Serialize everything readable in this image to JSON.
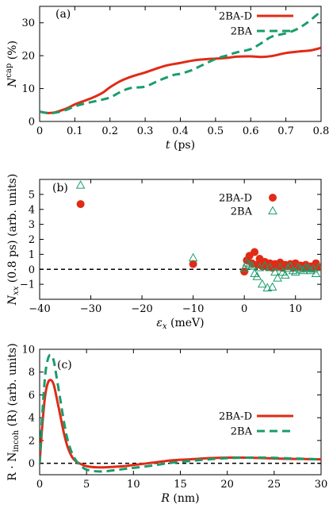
{
  "colors": {
    "red": "#e02b16",
    "green": "#1a9c6b",
    "black": "#000000"
  },
  "chart_data": [
    {
      "type": "line",
      "panel_label": "(a)",
      "xlabel_main": "t",
      "xlabel_unit": "(ps)",
      "ylabel_main": "N",
      "ylabel_sup": "cap",
      "ylabel_unit": "(%)",
      "xlim": [
        0,
        0.8
      ],
      "ylim": [
        0,
        35
      ],
      "xticks": [
        0,
        0.1,
        0.2,
        0.3,
        0.4,
        0.5,
        0.6,
        0.7,
        0.8
      ],
      "xtick_labels": [
        "0",
        "0.1",
        "0.2",
        "0.3",
        "0.4",
        "0.5",
        "0.6",
        "0.7",
        "0.8"
      ],
      "yticks": [
        0,
        10,
        20,
        30
      ],
      "ytick_labels": [
        "0",
        "10",
        "20",
        "30"
      ],
      "legend": "top-right",
      "series": [
        {
          "name": "2BA-D",
          "style": "solid",
          "color": "#e02b16",
          "x": [
            0,
            0.02,
            0.04,
            0.06,
            0.08,
            0.1,
            0.12,
            0.15,
            0.18,
            0.2,
            0.23,
            0.26,
            0.3,
            0.33,
            0.36,
            0.4,
            0.44,
            0.48,
            0.5,
            0.53,
            0.56,
            0.6,
            0.63,
            0.66,
            0.7,
            0.74,
            0.77,
            0.8
          ],
          "y": [
            3,
            2.6,
            2.7,
            3.3,
            4.1,
            5.2,
            6.0,
            7.2,
            8.8,
            10.4,
            12.3,
            13.6,
            14.9,
            16.0,
            17.0,
            17.8,
            18.6,
            19.0,
            19.1,
            19.3,
            19.7,
            19.8,
            19.6,
            19.9,
            20.8,
            21.3,
            21.6,
            22.4
          ]
        },
        {
          "name": "2BA",
          "style": "dashed",
          "color": "#1a9c6b",
          "x": [
            0,
            0.02,
            0.04,
            0.06,
            0.08,
            0.1,
            0.13,
            0.16,
            0.2,
            0.23,
            0.26,
            0.3,
            0.34,
            0.38,
            0.4,
            0.43,
            0.46,
            0.5,
            0.53,
            0.56,
            0.6,
            0.63,
            0.66,
            0.7,
            0.73,
            0.76,
            0.8
          ],
          "y": [
            3,
            2.6,
            2.6,
            3.0,
            3.7,
            4.6,
            5.5,
            6.2,
            7.3,
            9.0,
            10.2,
            10.6,
            12.5,
            14.1,
            14.5,
            15.5,
            17.0,
            19.0,
            20.0,
            21.0,
            22.0,
            23.8,
            25.8,
            26.8,
            28.0,
            30.0,
            33.5
          ]
        }
      ]
    },
    {
      "type": "scatter",
      "panel_label": "(b)",
      "xlabel_main": "ε",
      "xlabel_sub": "x",
      "xlabel_unit": "(meV)",
      "ylabel_main": "N",
      "ylabel_sub": "xx",
      "ylabel_unit": "(0.8 ps) (arb. units)",
      "xlim": [
        -40,
        15
      ],
      "ylim": [
        -2,
        6
      ],
      "xticks": [
        -40,
        -30,
        -20,
        -10,
        0,
        10
      ],
      "xtick_labels": [
        "−40",
        "−30",
        "−20",
        "−10",
        "0",
        "10"
      ],
      "yticks": [
        -1,
        0,
        1,
        2,
        3,
        4,
        5
      ],
      "ytick_labels": [
        "−1",
        "0",
        "1",
        "2",
        "3",
        "4",
        "5"
      ],
      "zero_line": true,
      "legend": "top-right",
      "series": [
        {
          "name": "2BA-D",
          "marker": "filled-circle",
          "color": "#e02b16",
          "x": [
            -32,
            -10,
            0,
            0.5,
            1,
            1.5,
            2,
            2.5,
            3,
            3.5,
            4,
            4.5,
            5,
            5.5,
            6,
            6.5,
            7,
            7.5,
            8,
            8.5,
            9,
            9.5,
            10,
            10.5,
            11,
            11.5,
            12,
            12.5,
            13,
            13.5,
            14,
            14.5
          ],
          "y": [
            4.35,
            0.35,
            -0.15,
            0.6,
            0.9,
            0.4,
            1.15,
            0.3,
            0.7,
            0.2,
            0.5,
            0.15,
            0.4,
            0.1,
            0.35,
            0.2,
            0.45,
            0.1,
            0.3,
            0.2,
            0.35,
            0.1,
            0.4,
            0.15,
            0.25,
            0.1,
            0.3,
            0.1,
            0.2,
            0.1,
            0.4,
            0.15
          ]
        },
        {
          "name": "2BA",
          "marker": "open-triangle",
          "color": "#1a9c6b",
          "x": [
            -32,
            -10,
            0,
            0.5,
            1,
            1.5,
            2,
            2.5,
            3,
            3.5,
            4,
            4.5,
            5,
            5.5,
            6,
            6.5,
            7,
            7.5,
            8,
            8.5,
            9,
            9.5,
            10,
            10.5,
            11,
            11.5,
            12,
            12.5,
            13,
            13.5,
            14,
            14.5
          ],
          "y": [
            5.6,
            0.75,
            0.05,
            0.4,
            0.3,
            0.2,
            -0.3,
            -0.5,
            0.1,
            -1.0,
            0.2,
            -1.25,
            0.1,
            -1.2,
            -0.2,
            -0.6,
            0.1,
            -0.2,
            -0.4,
            0.05,
            0.2,
            -0.1,
            -0.2,
            0.1,
            0.0,
            -0.1,
            0.1,
            0.05,
            -0.1,
            0.0,
            -0.3,
            0.1
          ]
        }
      ]
    },
    {
      "type": "line",
      "panel_label": "(c)",
      "xlabel_main": "R",
      "xlabel_unit": "(nm)",
      "ylabel_main": "R · N",
      "ylabel_sub": "incoh",
      "ylabel_unit": "(R) (arb. units)",
      "xlim": [
        0,
        30
      ],
      "ylim": [
        -1,
        10
      ],
      "xticks": [
        0,
        5,
        10,
        15,
        20,
        25,
        30
      ],
      "xtick_labels": [
        "0",
        "5",
        "10",
        "15",
        "20",
        "25",
        "30"
      ],
      "yticks": [
        0,
        2,
        4,
        6,
        8,
        10
      ],
      "ytick_labels": [
        "0",
        "2",
        "4",
        "6",
        "8",
        "10"
      ],
      "zero_line": true,
      "legend": "center-right",
      "series": [
        {
          "name": "2BA-D",
          "style": "solid",
          "color": "#e02b16",
          "x": [
            0,
            0.3,
            0.6,
            0.9,
            1.2,
            1.5,
            1.8,
            2.2,
            2.6,
            3.0,
            3.5,
            4.0,
            4.5,
            5.0,
            6,
            7,
            8,
            9,
            10,
            12,
            14,
            16,
            18,
            20,
            22,
            24,
            26,
            28,
            30
          ],
          "y": [
            0,
            3.5,
            6.0,
            7.1,
            7.3,
            6.9,
            5.8,
            4.2,
            2.6,
            1.4,
            0.5,
            0.1,
            -0.1,
            -0.25,
            -0.35,
            -0.35,
            -0.3,
            -0.25,
            -0.15,
            0.05,
            0.25,
            0.35,
            0.45,
            0.5,
            0.5,
            0.45,
            0.4,
            0.38,
            0.35
          ]
        },
        {
          "name": "2BA",
          "style": "dashed",
          "color": "#1a9c6b",
          "x": [
            0,
            0.3,
            0.6,
            0.9,
            1.2,
            1.5,
            1.8,
            2.2,
            2.6,
            3.0,
            3.5,
            4.0,
            4.5,
            5.0,
            6,
            7,
            8,
            9,
            10,
            12,
            14,
            16,
            18,
            20,
            22,
            24,
            26,
            28,
            30
          ],
          "y": [
            0,
            4.5,
            7.8,
            9.2,
            9.5,
            9.0,
            7.6,
            5.6,
            3.6,
            2.0,
            0.8,
            0.1,
            -0.3,
            -0.55,
            -0.7,
            -0.7,
            -0.6,
            -0.5,
            -0.4,
            -0.2,
            0.05,
            0.2,
            0.35,
            0.45,
            0.5,
            0.5,
            0.45,
            0.4,
            0.35
          ]
        }
      ]
    }
  ]
}
